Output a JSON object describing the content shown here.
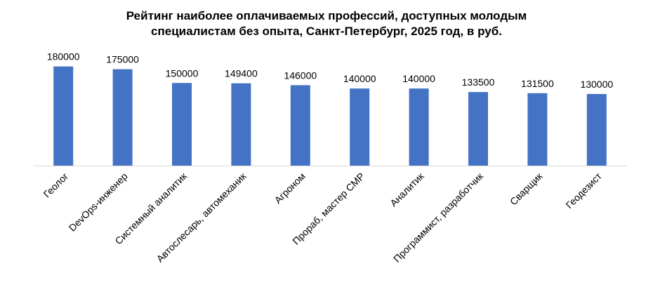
{
  "chart_data": {
    "type": "bar",
    "title_lines": [
      "Рейтинг наиболее оплачиваемых профессий, доступных молодым",
      "специалистам без опыта, Санкт-Петербург, 2025 год, в руб."
    ],
    "categories": [
      "Геолог",
      "DevOps-инженер",
      "Системный аналитик",
      "Автослесарь, автомеханик",
      "Агроном",
      "Прораб, мастер СМР",
      "Аналитик",
      "Программист, разработчик",
      "Сварщик",
      "Геодезист"
    ],
    "values": [
      180000,
      175000,
      150000,
      149400,
      146000,
      140000,
      140000,
      133500,
      131500,
      130000
    ],
    "value_labels": [
      "180000",
      "175000",
      "150000",
      "149400",
      "146000",
      "140000",
      "140000",
      "133500",
      "131500",
      "130000"
    ],
    "xlabel": "",
    "ylabel": "",
    "grid": false,
    "legend": "none",
    "bar_color": "#4472C4"
  }
}
